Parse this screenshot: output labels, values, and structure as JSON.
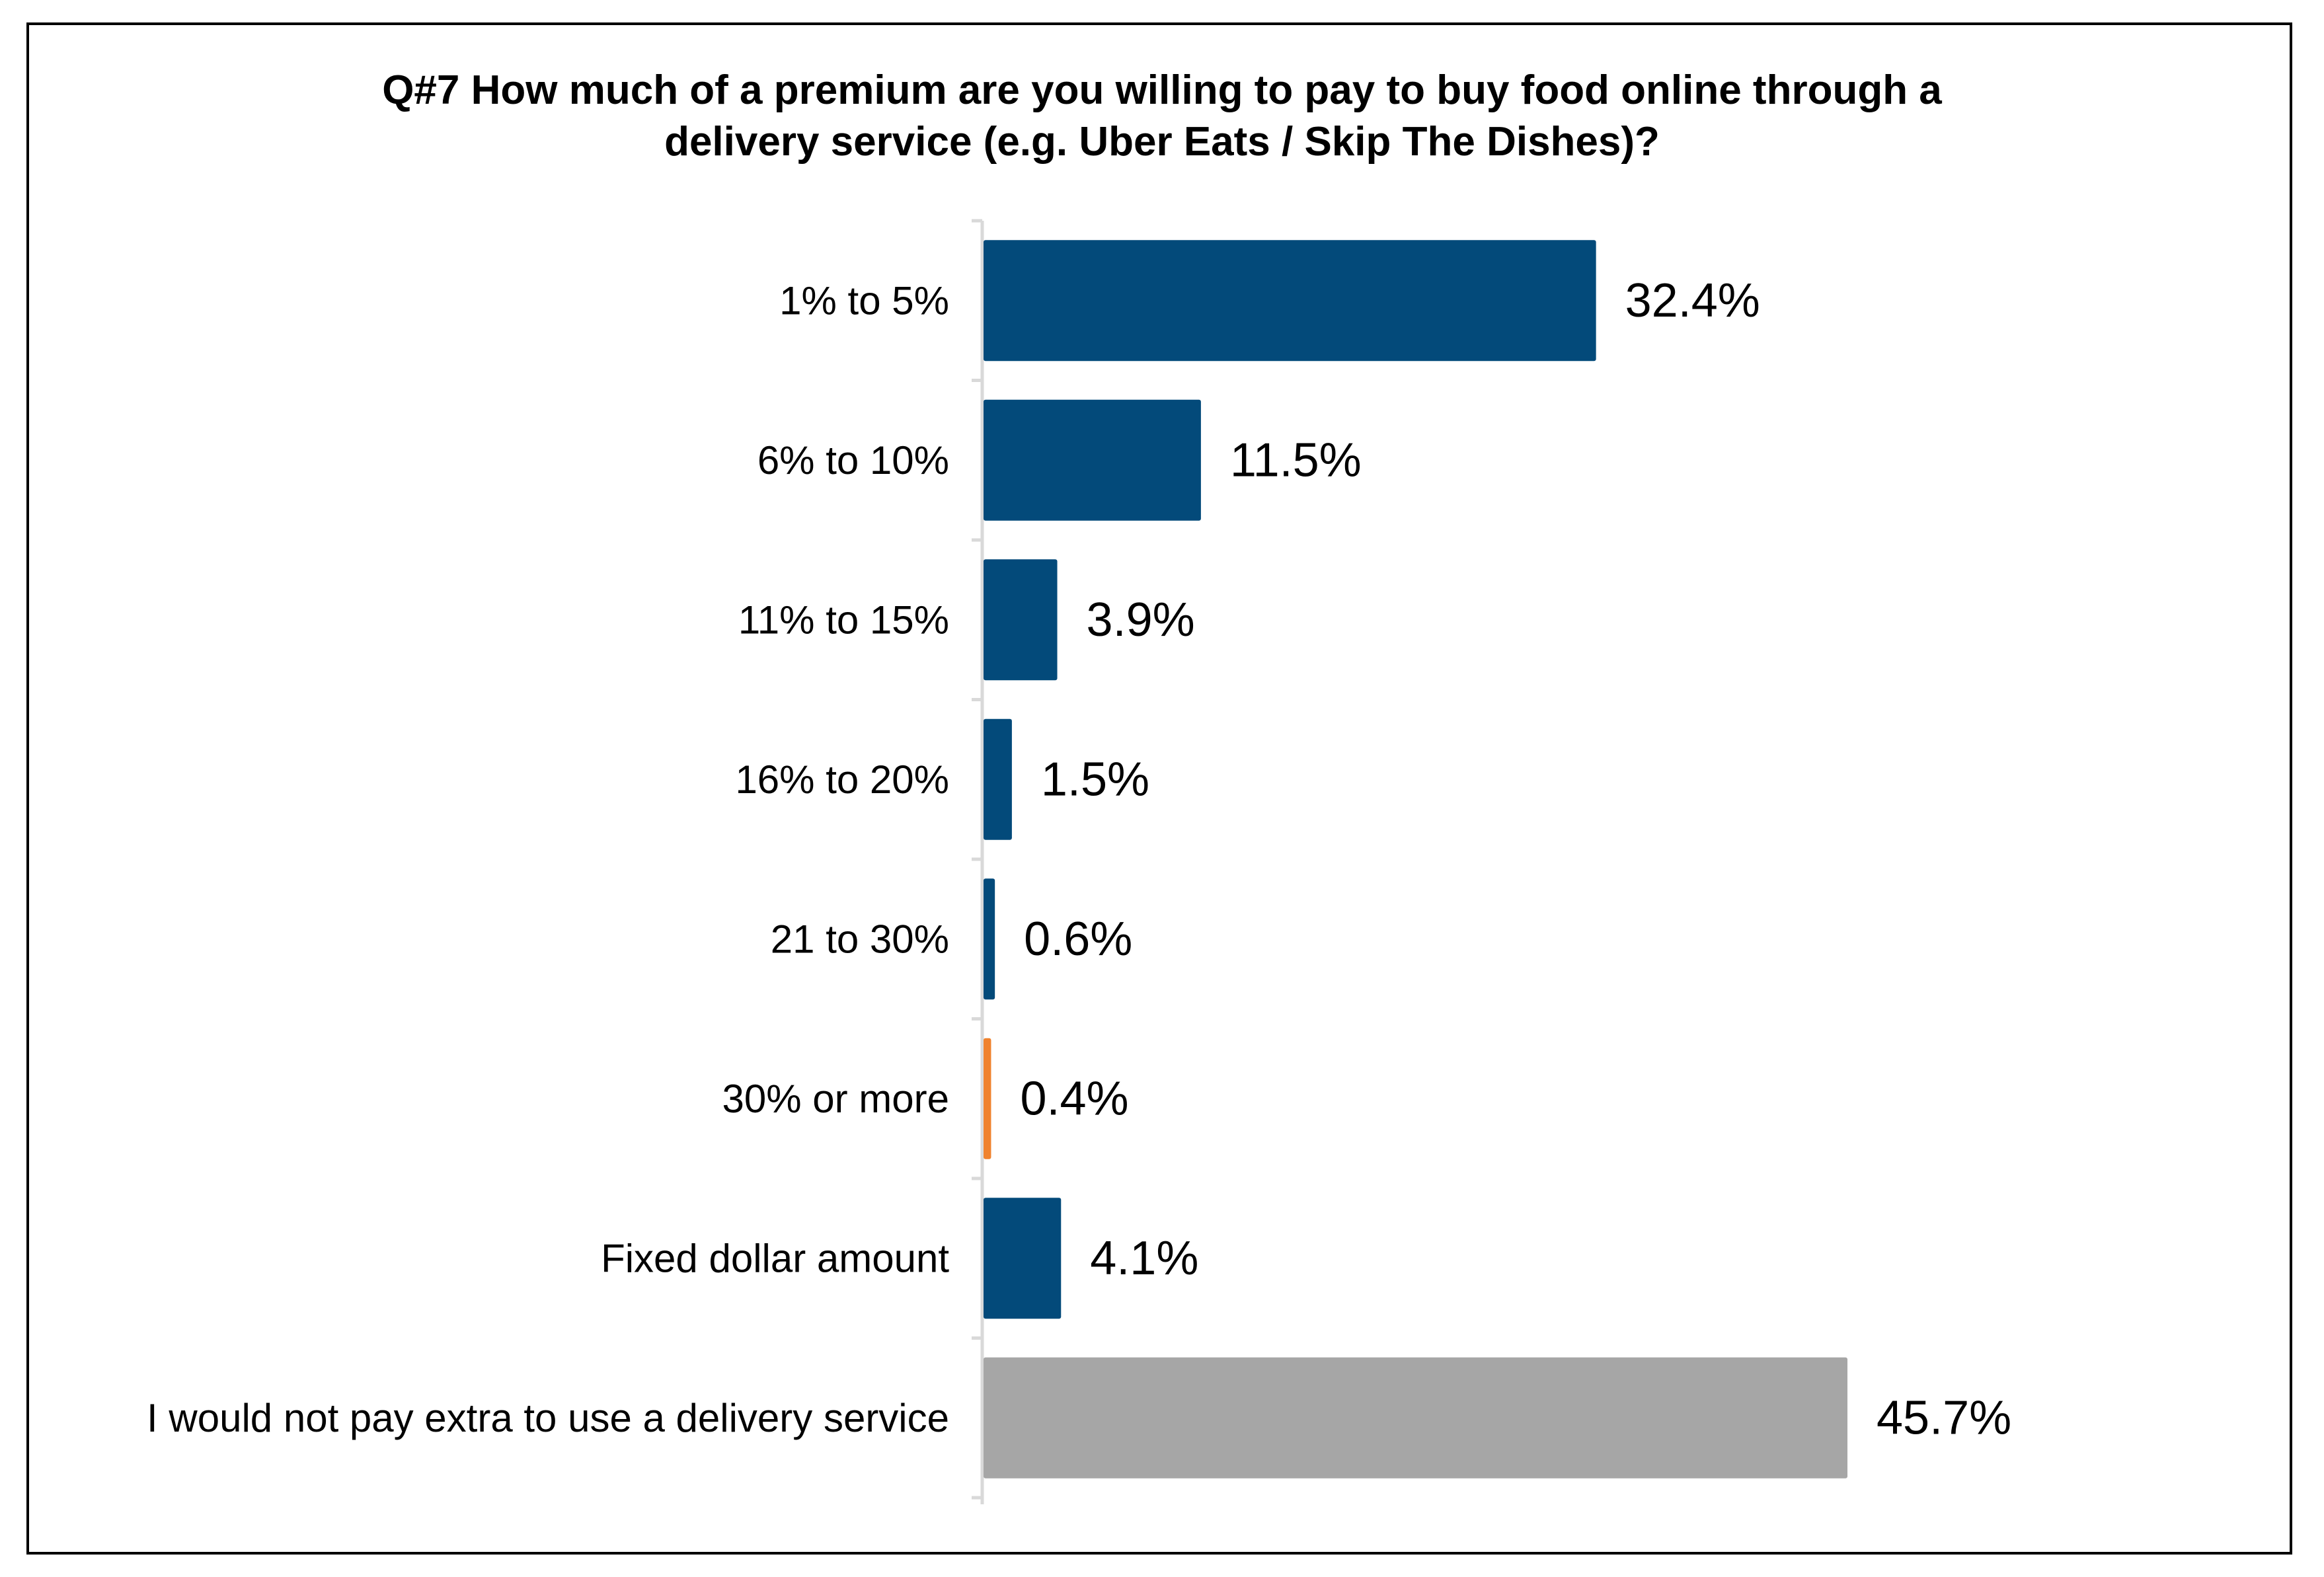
{
  "chart_data": {
    "type": "bar",
    "orientation": "horizontal",
    "title": "Q#7 How much of a premium are you willing to pay to buy food online through a delivery service (e.g. Uber Eats / Skip The Dishes)?",
    "title_lines": [
      "Q#7 How much of a premium are you willing to pay to buy food online through a",
      "delivery service (e.g. Uber Eats / Skip The Dishes)?"
    ],
    "xlabel": "",
    "ylabel": "",
    "grid": false,
    "xlim": [
      0,
      50
    ],
    "categories": [
      "1% to 5%",
      "6% to 10%",
      "11% to 15%",
      "16% to 20%",
      "21 to 30%",
      "30% or more",
      "Fixed dollar amount",
      "I would not pay extra to use a delivery service"
    ],
    "values": [
      32.4,
      11.5,
      3.9,
      1.5,
      0.6,
      0.4,
      4.1,
      45.7
    ],
    "value_labels": [
      "32.4%",
      "11.5%",
      "3.9%",
      "1.5%",
      "0.6%",
      "0.4%",
      "4.1%",
      "45.7%"
    ],
    "bar_colors": [
      "#034a7a",
      "#034a7a",
      "#034a7a",
      "#034a7a",
      "#034a7a",
      "#f0822d",
      "#034a7a",
      "#a6a6a6"
    ]
  },
  "colors": {
    "primary": "#034a7a",
    "highlight": "#f0822d",
    "neutral": "#a6a6a6",
    "axis": "#d9d9d9"
  }
}
